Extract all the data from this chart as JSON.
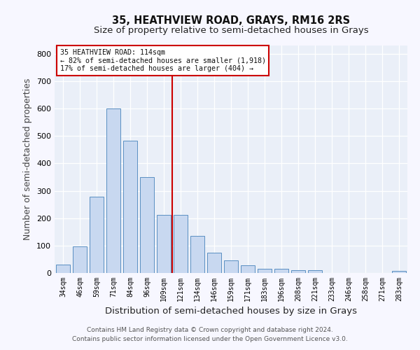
{
  "title": "35, HEATHVIEW ROAD, GRAYS, RM16 2RS",
  "subtitle": "Size of property relative to semi-detached houses in Grays",
  "xlabel": "Distribution of semi-detached houses by size in Grays",
  "ylabel": "Number of semi-detached properties",
  "categories": [
    "34sqm",
    "46sqm",
    "59sqm",
    "71sqm",
    "84sqm",
    "96sqm",
    "109sqm",
    "121sqm",
    "134sqm",
    "146sqm",
    "159sqm",
    "171sqm",
    "183sqm",
    "196sqm",
    "208sqm",
    "221sqm",
    "233sqm",
    "246sqm",
    "258sqm",
    "271sqm",
    "283sqm"
  ],
  "values": [
    30,
    97,
    278,
    600,
    483,
    350,
    213,
    213,
    135,
    73,
    45,
    28,
    15,
    16,
    10,
    10,
    0,
    0,
    0,
    0,
    7
  ],
  "bar_color": "#c8d8f0",
  "bar_edge_color": "#5a8fc2",
  "vline_color": "#cc0000",
  "annotation_title": "35 HEATHVIEW ROAD: 114sqm",
  "annotation_line1": "← 82% of semi-detached houses are smaller (1,918)",
  "annotation_line2": "17% of semi-detached houses are larger (404) →",
  "annotation_box_color": "#ffffff",
  "annotation_box_edge": "#cc0000",
  "ylim": [
    0,
    830
  ],
  "yticks": [
    0,
    100,
    200,
    300,
    400,
    500,
    600,
    700,
    800
  ],
  "footnote1": "Contains HM Land Registry data © Crown copyright and database right 2024.",
  "footnote2": "Contains public sector information licensed under the Open Government Licence v3.0.",
  "bg_color": "#eaeff8",
  "grid_color": "#ffffff",
  "fig_bg_color": "#f7f7ff",
  "title_fontsize": 10.5,
  "subtitle_fontsize": 9.5,
  "axis_label_fontsize": 9,
  "tick_fontsize": 7,
  "footnote_fontsize": 6.5,
  "vline_pos": 6.5
}
